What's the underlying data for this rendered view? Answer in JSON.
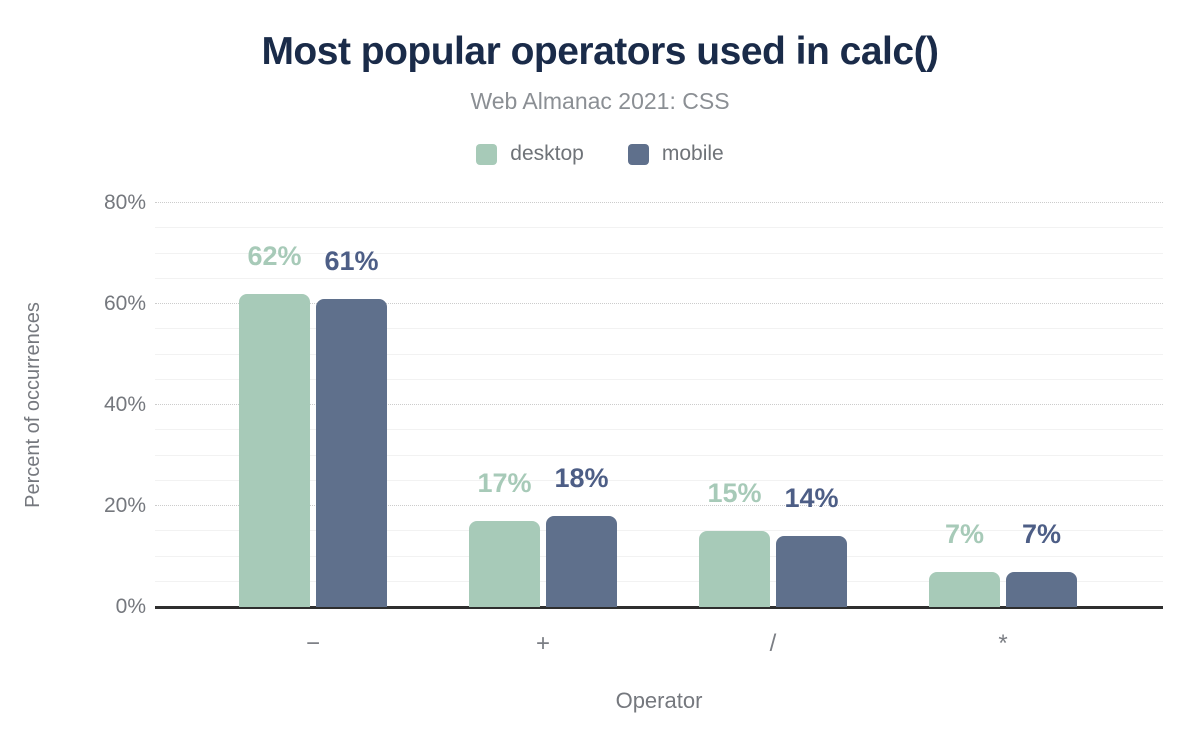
{
  "header": {
    "title": "Most popular operators used in calc()",
    "subtitle": "Web Almanac 2021: CSS"
  },
  "legend": {
    "items": [
      {
        "label": "desktop",
        "color": "#a7cab8"
      },
      {
        "label": "mobile",
        "color": "#5f708c"
      }
    ]
  },
  "colors": {
    "title_text": "#1a2b49",
    "subtitle_text": "#8b8f94",
    "axis_text": "#75787e",
    "axis_line": "#2e2e2e",
    "minor_gridline": "#f2f2f2",
    "major_gridline": "#cccccc",
    "desktop_bar": "#a7cab8",
    "mobile_bar": "#5f708c",
    "desktop_value_label": "#a7cab8",
    "mobile_value_label": "#4d5e86"
  },
  "chart_data": {
    "type": "bar",
    "title": "Most popular operators used in calc()",
    "subtitle": "Web Almanac 2021: CSS",
    "xlabel": "Operator",
    "ylabel": "Percent of occurrences",
    "categories": [
      "−",
      "+",
      "/",
      "*"
    ],
    "series": [
      {
        "name": "desktop",
        "color": "#a7cab8",
        "label_color": "#a7cab8",
        "values": [
          62,
          17,
          15,
          7
        ],
        "labels": [
          "62%",
          "17%",
          "15%",
          "7%"
        ]
      },
      {
        "name": "mobile",
        "color": "#5f708c",
        "label_color": "#4d5e86",
        "values": [
          61,
          18,
          14,
          7
        ],
        "labels": [
          "61%",
          "18%",
          "14%",
          "7%"
        ]
      }
    ],
    "ylim": [
      0,
      80
    ],
    "yticks": [
      {
        "value": 0,
        "label": "0%"
      },
      {
        "value": 20,
        "label": "20%"
      },
      {
        "value": 40,
        "label": "40%"
      },
      {
        "value": 60,
        "label": "60%"
      },
      {
        "value": 80,
        "label": "80%"
      }
    ],
    "grid": {
      "orientation": "horizontal",
      "minor_step": 5,
      "major_step": 20
    },
    "legend_position": "top"
  }
}
